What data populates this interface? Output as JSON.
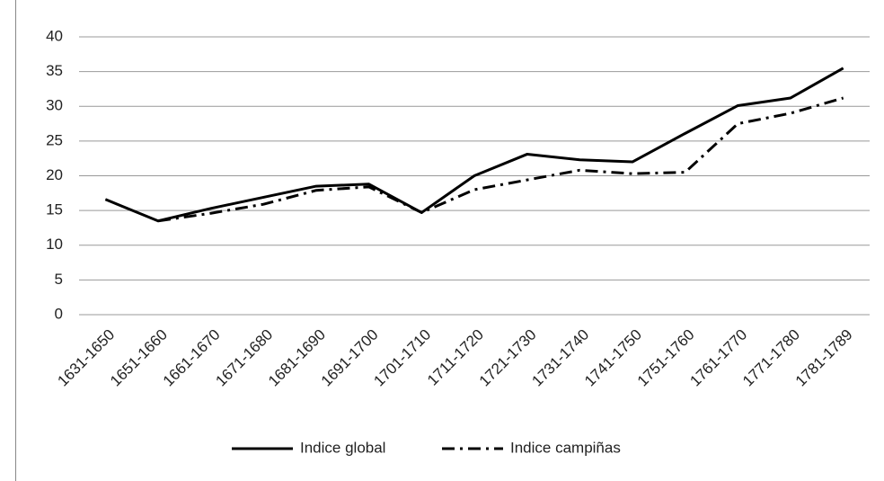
{
  "chart_data": {
    "type": "line",
    "categories": [
      "1631-1650",
      "1651-1660",
      "1661-1670",
      "1671-1680",
      "1681-1690",
      "1691-1700",
      "1701-1710",
      "1711-1720",
      "1721-1730",
      "1731-1740",
      "1741-1750",
      "1751-1760",
      "1761-1770",
      "1771-1780",
      "1781-1789"
    ],
    "series": [
      {
        "name": "Indice global",
        "color": "#000000",
        "line_style": "solid",
        "values": [
          16.6,
          13.5,
          15.3,
          16.9,
          18.5,
          18.8,
          14.7,
          20.0,
          23.1,
          22.3,
          22.0,
          26.1,
          30.1,
          31.2,
          35.5
        ]
      },
      {
        "name": "Indice campiñas",
        "color": "#000000",
        "line_style": "dash-dot",
        "values": [
          null,
          13.5,
          14.6,
          15.9,
          17.9,
          18.4,
          14.7,
          18.0,
          19.4,
          20.8,
          20.3,
          20.5,
          27.5,
          29.0,
          31.2
        ]
      }
    ],
    "ylim": [
      0,
      40
    ],
    "yticks": [
      0,
      5,
      10,
      15,
      20,
      25,
      30,
      35,
      40
    ],
    "grid": true,
    "legend": "bottom"
  }
}
